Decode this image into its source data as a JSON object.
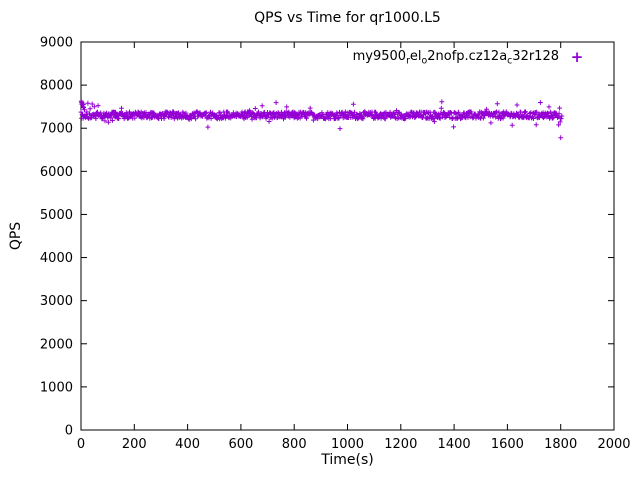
{
  "chart_data": {
    "type": "scatter",
    "title": "QPS vs Time for qr1000.L5",
    "xlabel": "Time(s)",
    "ylabel": "QPS",
    "xlim": [
      0,
      2000
    ],
    "ylim": [
      0,
      9000
    ],
    "xticks": [
      0,
      200,
      400,
      600,
      800,
      1000,
      1200,
      1400,
      1600,
      1800,
      2000
    ],
    "yticks": [
      0,
      1000,
      2000,
      3000,
      4000,
      5000,
      6000,
      7000,
      8000,
      9000
    ],
    "grid": false,
    "legend_position": "top-right-inside",
    "marker": "+",
    "series": [
      {
        "name": "my9500_rel_o2nofp.cz12a_c32r128",
        "color": "#9400d3",
        "summary": "Steady throughput band near 7300 QPS from t=0s to t=1805s",
        "band": {
          "x_start": 0,
          "x_end": 1805,
          "x_step": 2,
          "y_mean": 7300,
          "y_jitter": 150,
          "spike_prob": 0.03,
          "seed": 20240607
        },
        "start_points": [
          [
            1,
            7630
          ],
          [
            2,
            7600
          ],
          [
            3,
            7560
          ],
          [
            4,
            7590
          ],
          [
            6,
            7540
          ],
          [
            8,
            7500
          ],
          [
            10,
            7480
          ],
          [
            13,
            7430
          ]
        ],
        "low_points": [
          [
            90,
            7170
          ],
          [
            103,
            7140
          ],
          [
            118,
            7180
          ]
        ],
        "outliers": [
          [
            1800,
            6780
          ]
        ]
      }
    ]
  }
}
